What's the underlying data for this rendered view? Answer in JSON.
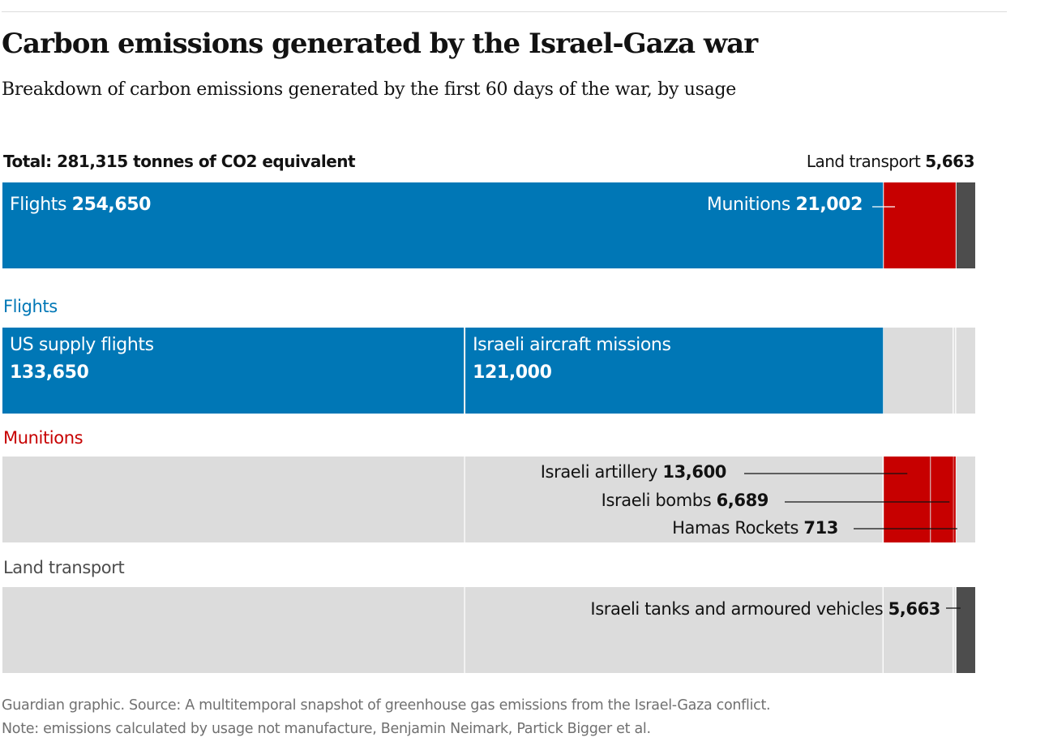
{
  "title": "Carbon emissions generated by the Israel-Gaza war",
  "subtitle": "Breakdown of carbon emissions generated by the first 60 days of the war, by usage",
  "footer": {
    "source": "Guardian graphic. Source: A multitemporal snapshot of greenhouse gas emissions from the Israel-Gaza conflict.",
    "note": "Note: emissions calculated by usage not manufacture, Benjamin Neimark, Partick Bigger et al."
  },
  "colors": {
    "flights": "#0077b6",
    "munitions": "#c70000",
    "land": "#4d4d4d",
    "background_bar": "#dcdcdc"
  },
  "chart_data": {
    "type": "bar",
    "orientation": "horizontal",
    "stacked": true,
    "total_label": "Total: 281,315 tonnes of CO2 equivalent",
    "total": 281315,
    "unit": "tonnes of CO2 equivalent",
    "categories": [
      {
        "name": "Flights",
        "value": 254650,
        "color": "#0077b6",
        "value_label": "254,650"
      },
      {
        "name": "Munitions",
        "value": 21002,
        "color": "#c70000",
        "value_label": "21,002"
      },
      {
        "name": "Land transport",
        "value": 5663,
        "color": "#4d4d4d",
        "value_label": "5,663"
      }
    ],
    "sections": [
      {
        "name": "Flights",
        "color": "#0077b6",
        "items": [
          {
            "name": "US supply flights",
            "value": 133650,
            "value_label": "133,650"
          },
          {
            "name": "Israeli aircraft missions",
            "value": 121000,
            "value_label": "121,000"
          }
        ]
      },
      {
        "name": "Munitions",
        "color": "#c70000",
        "items": [
          {
            "name": "Israeli artillery",
            "value": 13600,
            "value_label": "13,600"
          },
          {
            "name": "Israeli bombs",
            "value": 6689,
            "value_label": "6,689"
          },
          {
            "name": "Hamas Rockets",
            "value": 713,
            "value_label": "713"
          }
        ]
      },
      {
        "name": "Land transport",
        "color": "#4d4d4d",
        "items": [
          {
            "name": "Israeli tanks and armoured vehicles",
            "value": 5663,
            "value_label": "5,663"
          }
        ]
      }
    ]
  }
}
